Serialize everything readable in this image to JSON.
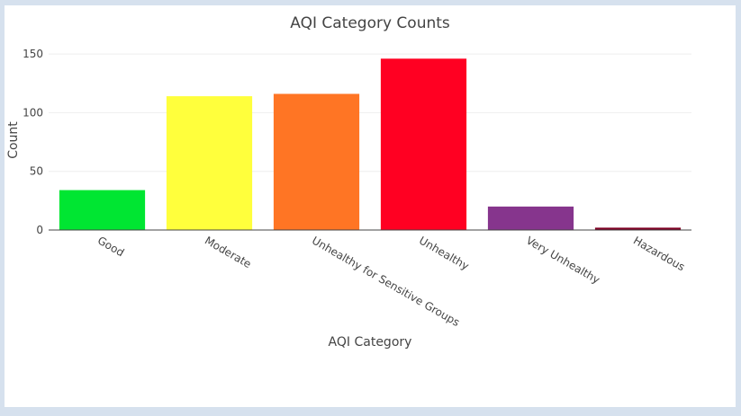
{
  "chart_data": {
    "type": "bar",
    "title": "AQI Category Counts",
    "xlabel": "AQI Category",
    "ylabel": "Count",
    "categories": [
      "Good",
      "Moderate",
      "Unhealthy for Sensitive Groups",
      "Unhealthy",
      "Very Unhealthy",
      "Hazardous"
    ],
    "values": [
      34,
      114,
      116,
      146,
      20,
      2
    ],
    "colors": [
      "#00e632",
      "#ffff3c",
      "#ff7524",
      "#ff0022",
      "#86358d",
      "#7e0023"
    ],
    "ylim": [
      0,
      160
    ],
    "yticks": [
      "0",
      "50",
      "100",
      "150"
    ],
    "grid": true
  }
}
